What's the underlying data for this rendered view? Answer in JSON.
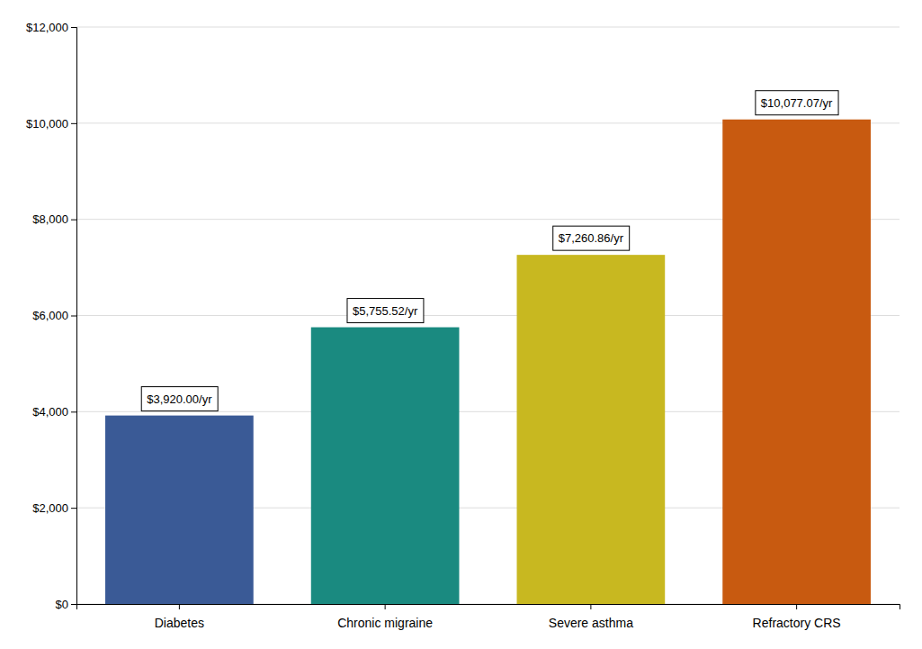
{
  "chart_data": {
    "type": "bar",
    "categories": [
      "Diabetes",
      "Chronic migraine",
      "Severe asthma",
      "Refractory CRS"
    ],
    "values": [
      3920.0,
      5755.52,
      7260.86,
      10077.07
    ],
    "value_labels": [
      "$3,920.00/yr",
      "$5,755.52/yr",
      "$7,260.86/yr",
      "$10,077.07/yr"
    ],
    "data_labels": true,
    "colors": [
      "#3a5a96",
      "#1a8a80",
      "#c8b820",
      "#c85a10"
    ],
    "ylim": [
      0,
      12000
    ],
    "yticks": [
      {
        "value": 0,
        "label": "$0"
      },
      {
        "value": 2000,
        "label": "$2,000"
      },
      {
        "value": 4000,
        "label": "$4,000"
      },
      {
        "value": 6000,
        "label": "$6,000"
      },
      {
        "value": 8000,
        "label": "$8,000"
      },
      {
        "value": 10000,
        "label": "$10,000"
      },
      {
        "value": 12000,
        "label": "$12,000"
      }
    ],
    "grid": true
  }
}
